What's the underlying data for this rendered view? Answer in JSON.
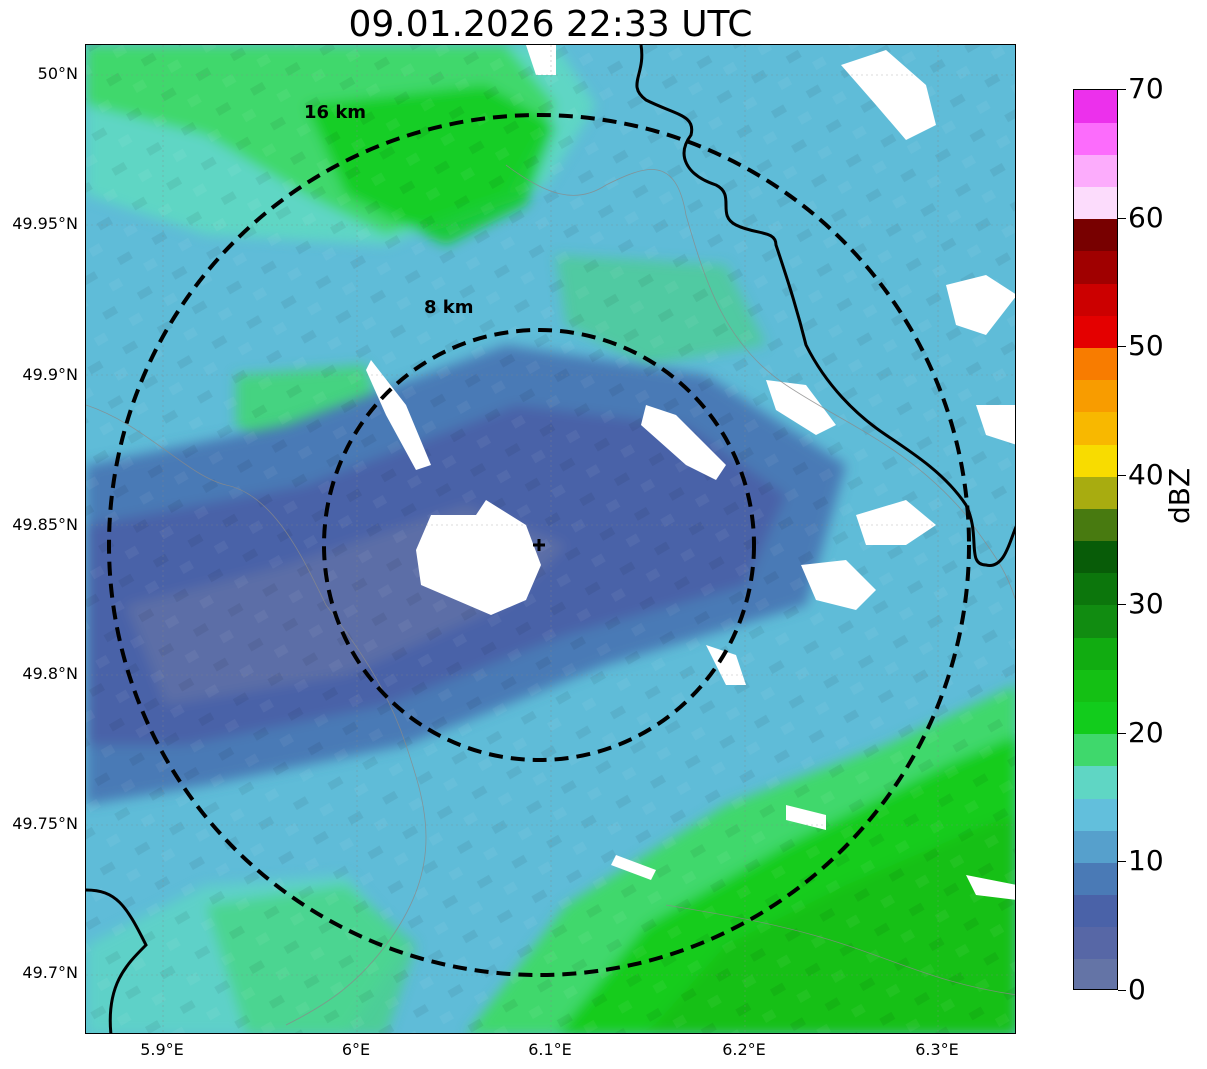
{
  "title": "09.01.2026 22:33 UTC",
  "map": {
    "lat_labels": [
      "50°N",
      "49.95°N",
      "49.9°N",
      "49.85°N",
      "49.8°N",
      "49.75°N",
      "49.7°N"
    ],
    "lon_labels": [
      "5.9°E",
      "6°E",
      "6.1°E",
      "6.2°E",
      "6.3°E"
    ],
    "range_rings": [
      {
        "label": "8 km",
        "radius_km": 8
      },
      {
        "label": "16 km",
        "radius_km": 16
      }
    ],
    "radar_site_marker": "plus-icon",
    "colors": {
      "background_echo": "#5fbcd8",
      "weak_echo": "#4a62a8",
      "moderate_echo": "#3ed66a",
      "strong_echo": "#12c418",
      "no_echo": "#ffffff",
      "border": "#000000"
    }
  },
  "colorbar": {
    "title": "dBZ",
    "tick_labels": [
      "0",
      "10",
      "20",
      "30",
      "40",
      "50",
      "60",
      "70"
    ],
    "range": [
      0,
      70
    ],
    "colors": [
      "#6474a6",
      "#5767a6",
      "#4a62a8",
      "#4a7ab6",
      "#56a0cc",
      "#62bfdc",
      "#5fd6c4",
      "#3fd86c",
      "#12cc1c",
      "#14c014",
      "#11ac11",
      "#118c11",
      "#0c760c",
      "#085c08",
      "#487a10",
      "#a8ac10",
      "#f8dc00",
      "#f8b800",
      "#f89c00",
      "#f87c00",
      "#e40000",
      "#cc0000",
      "#a00000",
      "#780000",
      "#fcdcfc",
      "#fcacfc",
      "#fc6cfc",
      "#ec30ec"
    ]
  }
}
